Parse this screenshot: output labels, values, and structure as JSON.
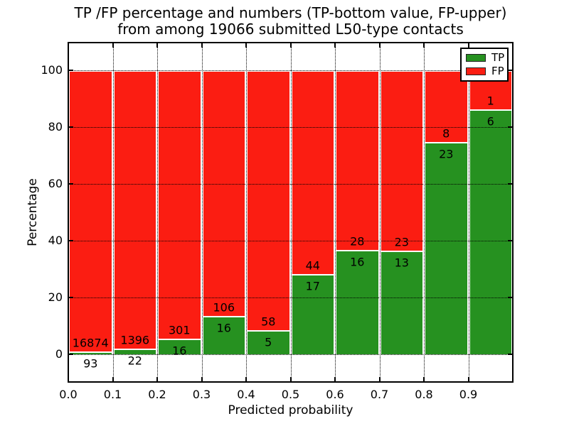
{
  "figure": {
    "title_line1": "TP /FP percentage and numbers (TP-bottom value, FP-upper)",
    "title_line2": "from among 19066 submitted L50-type contacts"
  },
  "chart_data": {
    "type": "bar",
    "stacked": true,
    "title": "TP /FP percentage and numbers (TP-bottom value, FP-upper)\nfrom among 19066 submitted L50-type contacts",
    "xlabel": "Predicted probability",
    "ylabel": "Percentage",
    "total_submitted_contacts": 19066,
    "contact_type": "L50",
    "xlim": [
      0.0,
      1.0
    ],
    "ylim": [
      -10,
      110
    ],
    "x_ticks": [
      "0.0",
      "0.1",
      "0.2",
      "0.3",
      "0.4",
      "0.5",
      "0.6",
      "0.7",
      "0.8",
      "0.9"
    ],
    "y_ticks": [
      0,
      20,
      40,
      60,
      80,
      100
    ],
    "grid": true,
    "bin_width": 0.1,
    "categories": [
      "0.0-0.1",
      "0.1-0.2",
      "0.2-0.3",
      "0.3-0.4",
      "0.4-0.5",
      "0.5-0.6",
      "0.6-0.7",
      "0.7-0.8",
      "0.8-0.9",
      "0.9-1.0"
    ],
    "series": [
      {
        "name": "TP",
        "color": "#269120",
        "counts": [
          93,
          22,
          16,
          16,
          5,
          17,
          16,
          13,
          23,
          6
        ],
        "percent": [
          0.55,
          1.55,
          5.05,
          13.11,
          7.94,
          27.87,
          36.36,
          36.11,
          74.19,
          85.71
        ]
      },
      {
        "name": "FP",
        "color": "#fb1d12",
        "counts": [
          16874,
          1396,
          301,
          106,
          58,
          44,
          28,
          23,
          8,
          1
        ],
        "percent": [
          99.45,
          98.45,
          94.95,
          86.89,
          92.06,
          72.13,
          63.64,
          63.89,
          25.81,
          14.29
        ]
      }
    ],
    "legend": {
      "position": "upper-right",
      "entries": [
        "TP",
        "FP"
      ]
    }
  }
}
